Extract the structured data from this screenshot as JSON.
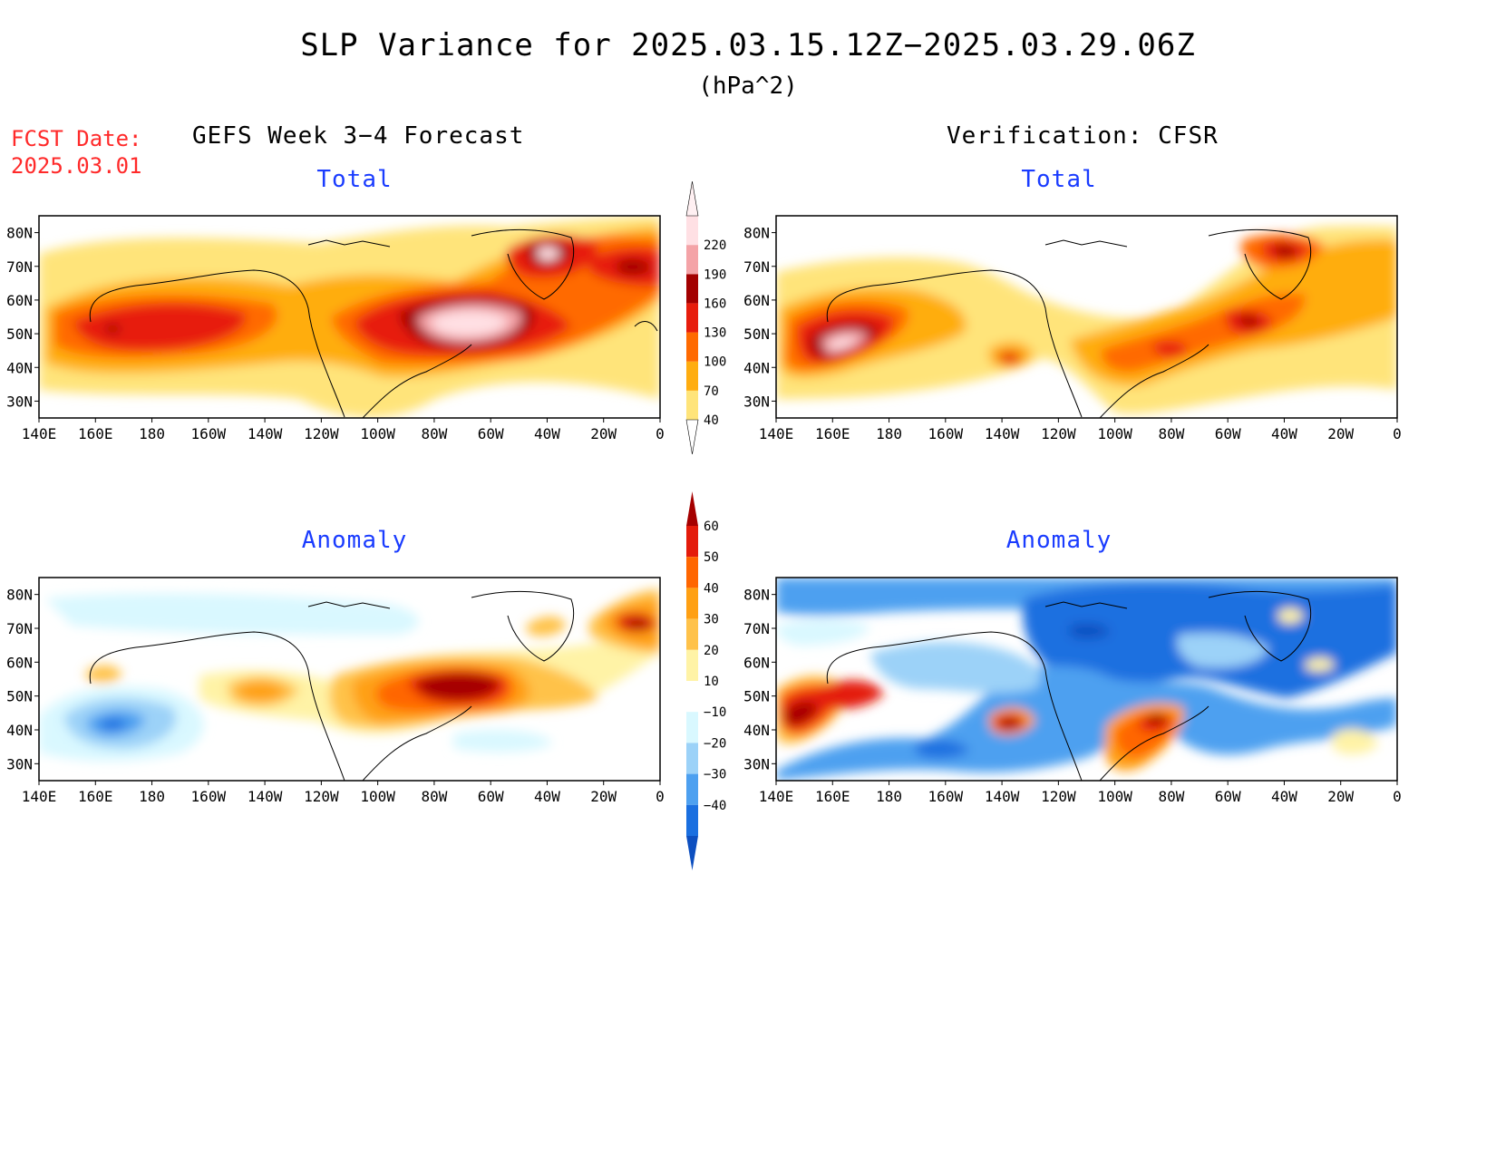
{
  "header": {
    "title": "SLP Variance for 2025.03.15.12Z−2025.03.29.06Z",
    "units": "(hPa^2)",
    "fcst_label": "FCST Date:",
    "fcst_date": "2025.03.01"
  },
  "columns": {
    "left_title": "GEFS Week 3−4 Forecast",
    "right_title": "Verification: CFSR"
  },
  "panels": [
    {
      "id": "fcst-total",
      "title": "Total"
    },
    {
      "id": "verif-total",
      "title": "Total"
    },
    {
      "id": "fcst-anomaly",
      "title": "Anomaly"
    },
    {
      "id": "verif-anomaly",
      "title": "Anomaly"
    }
  ],
  "axes": {
    "lat_labels": [
      "30N",
      "40N",
      "50N",
      "60N",
      "70N",
      "80N"
    ],
    "lon_labels": [
      "140E",
      "160E",
      "180",
      "160W",
      "140W",
      "120W",
      "100W",
      "80W",
      "60W",
      "40W",
      "20W",
      "0"
    ]
  },
  "colorbars": {
    "total": {
      "labels": [
        "40",
        "70",
        "100",
        "130",
        "160",
        "190",
        "220"
      ],
      "colors": [
        "#ffe47a",
        "#ffad10",
        "#ff6a00",
        "#e71d0c",
        "#a30000",
        "#f4a3a7",
        "#ffe0e4"
      ]
    },
    "anomaly": {
      "labels": [
        "60",
        "50",
        "40",
        "30",
        "20",
        "10",
        "−10",
        "−20",
        "−30",
        "−40"
      ],
      "colors_top_to_bottom": [
        "#a50000",
        "#e41b0b",
        "#ff6600",
        "#ffa013",
        "#ffc24a",
        "#fff3a6",
        "#ffffff",
        "#d9f8ff",
        "#9cd2f8",
        "#4da0f0",
        "#1a6fe0",
        "#0d4fc0"
      ]
    }
  }
}
